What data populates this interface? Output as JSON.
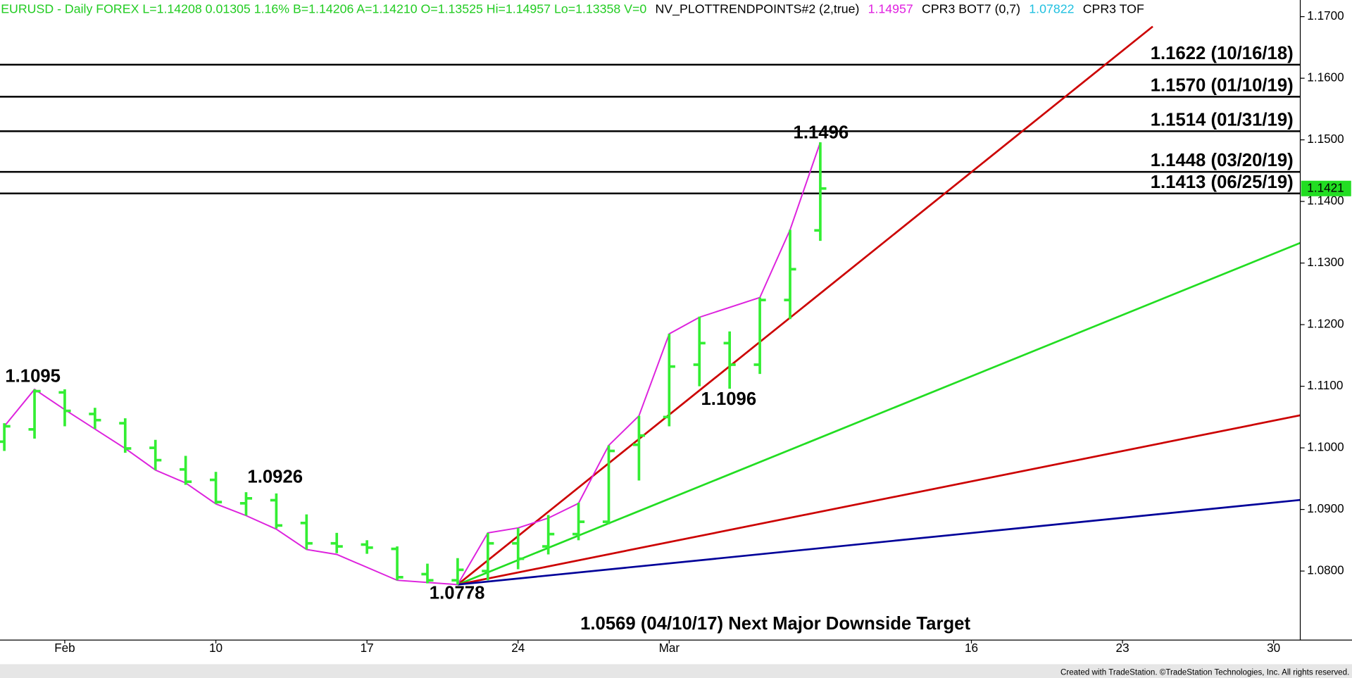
{
  "chart_data": {
    "type": "ohlc",
    "header": [
      {
        "text": "EURUSD - Daily  FOREX  L=1.14208  0.01305  1.16%  B=1.14206  A=1.14210  O=1.13525  Hi=1.14957  Lo=1.13358  V=0",
        "color": "#22cc22"
      },
      {
        "text": "NV_PLOTTRENDPOINTS#2 (2,true)",
        "color": "#000000"
      },
      {
        "text": "1.14957",
        "color": "#e020e0"
      },
      {
        "text": "CPR3 BOT7 (0,7)",
        "color": "#000000"
      },
      {
        "text": "1.07822",
        "color": "#20c0e0"
      },
      {
        "text": "CPR3 TOF",
        "color": "#000000"
      }
    ],
    "categories": [
      null,
      null,
      "Feb",
      null,
      null,
      null,
      null,
      "10",
      null,
      null,
      null,
      null,
      "17",
      null,
      null,
      null,
      null,
      "24",
      null,
      null,
      null,
      null,
      "Mar",
      null,
      null,
      null,
      null,
      null,
      null,
      null,
      null,
      null,
      "16",
      null,
      null,
      null,
      null,
      "23",
      null,
      null,
      null,
      null,
      "30",
      null
    ],
    "color": "#33ee33",
    "open": [
      1.101,
      1.103,
      1.109,
      1.1055,
      1.104,
      1.1,
      1.0965,
      1.0948,
      1.091,
      1.0915,
      1.0878,
      1.0845,
      1.0843,
      1.0836,
      1.0795,
      1.0785,
      1.08,
      1.0845,
      1.084,
      1.086,
      1.088,
      1.1005,
      1.105,
      1.1135,
      1.117,
      1.1135,
      1.124,
      1.1353,
      null,
      null,
      null,
      null,
      null,
      null,
      null,
      null,
      null,
      null,
      null,
      null,
      null,
      null,
      null,
      null
    ],
    "high": [
      1.104,
      1.1095,
      1.1095,
      1.1065,
      1.1048,
      1.1013,
      1.0987,
      1.0961,
      1.0928,
      1.0926,
      1.0892,
      1.0862,
      1.085,
      1.084,
      1.0812,
      1.0821,
      1.0862,
      1.087,
      1.0891,
      1.0911,
      1.1004,
      1.1052,
      1.1185,
      1.1213,
      1.1189,
      1.1244,
      1.1354,
      1.1496,
      null,
      null,
      null,
      null,
      null,
      null,
      null,
      null,
      null,
      null,
      null,
      null,
      null,
      null,
      null,
      null
    ],
    "low": [
      1.0995,
      1.1015,
      1.1035,
      1.1031,
      1.0992,
      1.0964,
      1.094,
      1.0909,
      1.089,
      1.0869,
      1.0835,
      1.0829,
      1.0828,
      1.0785,
      1.078,
      1.0778,
      1.0785,
      1.0803,
      1.0827,
      1.085,
      1.0876,
      1.0947,
      1.1035,
      1.11,
      1.1096,
      1.112,
      1.1209,
      1.1336,
      null,
      null,
      null,
      null,
      null,
      null,
      null,
      null,
      null,
      null,
      null,
      null,
      null,
      null,
      null,
      null
    ],
    "close": [
      1.1035,
      1.1092,
      1.106,
      1.1045,
      1.0999,
      1.098,
      1.0945,
      1.0912,
      1.0918,
      1.0874,
      1.0845,
      1.084,
      1.0838,
      1.079,
      1.0785,
      1.0802,
      1.0845,
      1.082,
      1.086,
      1.088,
      1.0995,
      1.102,
      1.1132,
      1.117,
      1.1135,
      1.124,
      1.129,
      1.1421,
      null,
      null,
      null,
      null,
      null,
      null,
      null,
      null,
      null,
      null,
      null,
      null,
      null,
      null,
      null,
      null
    ],
    "trend_points": {
      "color": "#dd22dd",
      "x": [
        0,
        1,
        2,
        4,
        5,
        6,
        7,
        8,
        9,
        10,
        11,
        13,
        15,
        16,
        17,
        18,
        19,
        20,
        21,
        22,
        23,
        25,
        26,
        27
      ],
      "values": [
        1.1035,
        1.1095,
        1.1062,
        1.0999,
        1.0964,
        1.0943,
        1.0909,
        1.089,
        1.0868,
        1.0835,
        1.0827,
        1.0785,
        1.0778,
        1.0862,
        1.087,
        1.0886,
        1.091,
        1.1004,
        1.1052,
        1.1185,
        1.1212,
        1.1244,
        1.1354,
        1.1496
      ]
    },
    "fan_lines": [
      {
        "color": "#cc0000",
        "x": [
          15,
          38
        ],
        "values": [
          1.0778,
          1.1684
        ]
      },
      {
        "color": "#22dd22",
        "x": [
          15,
          43
        ],
        "values": [
          1.0778,
          1.1335
        ]
      },
      {
        "color": "#cc0000",
        "x": [
          15,
          43
        ],
        "values": [
          1.0778,
          1.1054
        ]
      },
      {
        "color": "#000099",
        "x": [
          15,
          43
        ],
        "values": [
          1.0778,
          1.0916
        ]
      }
    ],
    "levels": [
      {
        "value": 1.1622,
        "label": "1.1622 (10/16/18)"
      },
      {
        "value": 1.157,
        "label": "1.1570 (01/10/19)"
      },
      {
        "value": 1.1514,
        "label": "1.1514 (01/31/19)"
      },
      {
        "value": 1.1448,
        "label": "1.1448 (03/20/19)"
      },
      {
        "value": 1.1413,
        "label": "1.1413 (06/25/19)"
      }
    ],
    "annotations": [
      {
        "text": "1.1095",
        "value": 1.1095
      },
      {
        "text": "1.0926",
        "value": 1.0926
      },
      {
        "text": "1.0778",
        "value": 1.0778
      },
      {
        "text": "1.1096",
        "value": 1.1096
      },
      {
        "text": "1.1496",
        "value": 1.1496
      },
      {
        "text": "1.0569 (04/10/17) Next Major Downside Target"
      }
    ],
    "last_price": {
      "value": 1.1421,
      "label": "1.1421",
      "color": "#22dd22"
    },
    "ylim": [
      1.0688,
      1.1727
    ],
    "yticks": [
      {
        "value": 1.08,
        "label": "1.0800"
      },
      {
        "value": 1.09,
        "label": "1.0900"
      },
      {
        "value": 1.1,
        "label": "1.1000"
      },
      {
        "value": 1.11,
        "label": "1.1100"
      },
      {
        "value": 1.12,
        "label": "1.1200"
      },
      {
        "value": 1.13,
        "label": "1.1300"
      },
      {
        "value": 1.14,
        "label": "1.1400"
      },
      {
        "value": 1.15,
        "label": "1.1500"
      },
      {
        "value": 1.16,
        "label": "1.1600"
      },
      {
        "value": 1.17,
        "label": "1.1700"
      }
    ],
    "footer": "Created with TradeStation. ©TradeStation Technologies, Inc. All rights reserved."
  }
}
